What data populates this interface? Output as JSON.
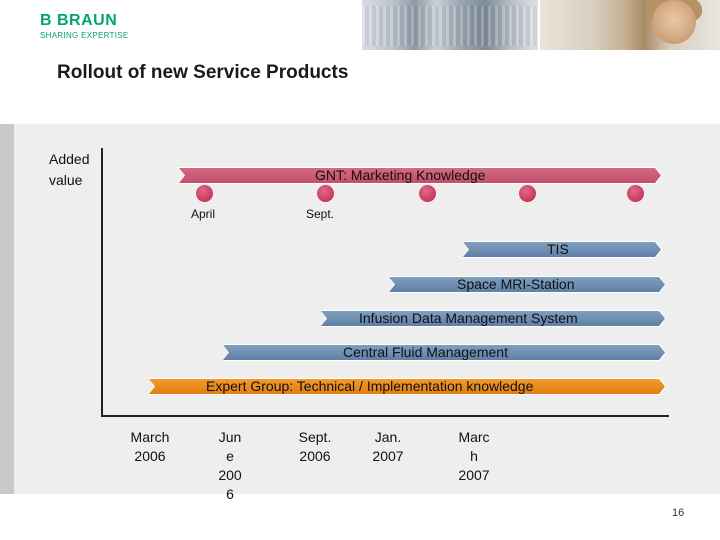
{
  "header": {
    "logo_main": "B BRAUN",
    "logo_sub": "SHARING EXPERTISE",
    "title": "Rollout of new Service Products"
  },
  "diagram": {
    "y_axis_label": "Added\nvalue",
    "bars": [
      {
        "label": "GNT: Marketing Knowledge",
        "color": "#c24f6c"
      },
      {
        "label": "TIS",
        "color": "#5f80a5"
      },
      {
        "label": "Space MRI-Station",
        "color": "#5f80a5"
      },
      {
        "label": "Infusion Data Management System",
        "color": "#5f80a5"
      },
      {
        "label": "Central Fluid Management",
        "color": "#5f80a5"
      },
      {
        "label": "Expert Group: Technical / Implementation knowledge",
        "color": "#e47e10"
      }
    ],
    "milestone_labels": [
      "April",
      "Sept."
    ],
    "x_labels": [
      "March\n2006",
      "Jun\ne\n200\n6",
      "Sept.\n2006",
      "Jan.\n2007",
      "Marc\nh\n2007"
    ]
  },
  "footer": {
    "page_number": "16"
  }
}
